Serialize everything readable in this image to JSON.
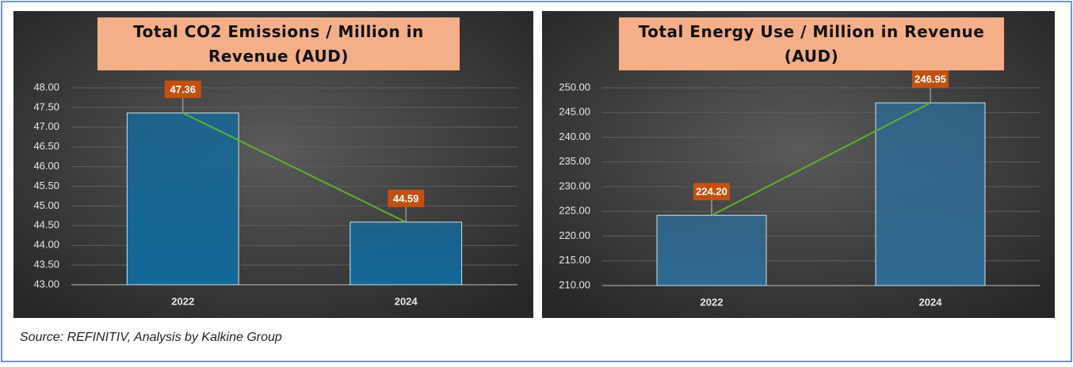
{
  "source": "Source: REFINITIV, Analysis by Kalkine Group",
  "chart_data": [
    {
      "type": "bar",
      "title": "Total CO2 Emissions / Million in Revenue (AUD)",
      "categories": [
        "2022",
        "2024"
      ],
      "values": [
        47.36,
        44.59
      ],
      "value_labels": [
        "47.36",
        "44.59"
      ],
      "color": "#13699a",
      "line_color": "#5cb030",
      "ylim": [
        43,
        48
      ],
      "yticks": [
        {
          "value": 43,
          "label": "43.00"
        },
        {
          "value": 43.5,
          "label": "43.50"
        },
        {
          "value": 44,
          "label": "44.00"
        },
        {
          "value": 44.5,
          "label": "44.50"
        },
        {
          "value": 45,
          "label": "45.00"
        },
        {
          "value": 45.5,
          "label": "45.50"
        },
        {
          "value": 46,
          "label": "46.00"
        },
        {
          "value": 46.5,
          "label": "46.50"
        },
        {
          "value": 47,
          "label": "47.00"
        },
        {
          "value": 47.5,
          "label": "47.50"
        },
        {
          "value": 48,
          "label": "48.00"
        }
      ],
      "grid": true
    },
    {
      "type": "bar",
      "title": "Total Energy Use / Million in Revenue (AUD)",
      "categories": [
        "2022",
        "2024"
      ],
      "values": [
        224.2,
        246.95
      ],
      "value_labels": [
        "224.20",
        "246.95"
      ],
      "color": "#2f6a93",
      "line_color": "#5cb030",
      "ylim": [
        210,
        250
      ],
      "yticks": [
        {
          "value": 210,
          "label": "210.00"
        },
        {
          "value": 215,
          "label": "215.00"
        },
        {
          "value": 220,
          "label": "220.00"
        },
        {
          "value": 225,
          "label": "225.00"
        },
        {
          "value": 230,
          "label": "230.00"
        },
        {
          "value": 235,
          "label": "235.00"
        },
        {
          "value": 240,
          "label": "240.00"
        },
        {
          "value": 245,
          "label": "245.00"
        },
        {
          "value": 250,
          "label": "250.00"
        }
      ],
      "grid": true
    }
  ]
}
